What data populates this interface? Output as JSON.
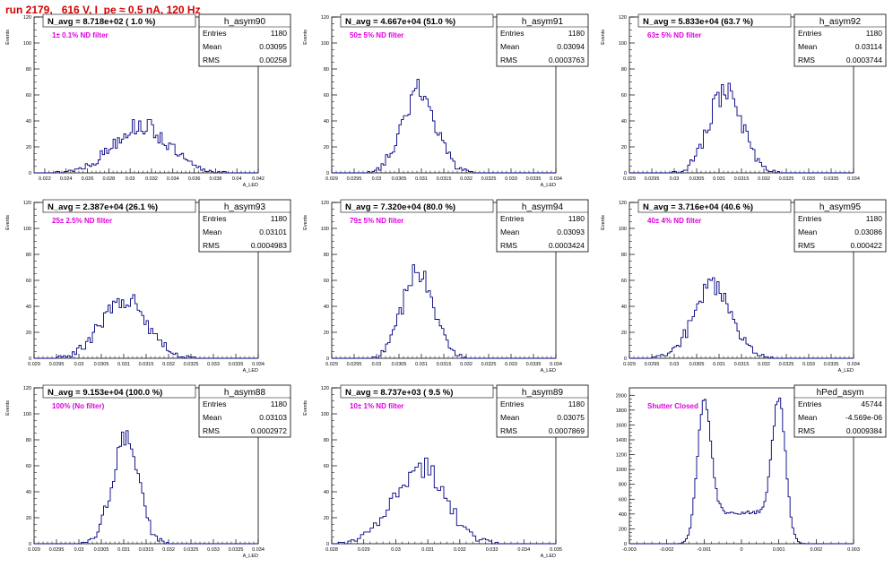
{
  "run_title": "run 2179,   616 V, I_pe ≈ 0.5 nA, 120 Hz",
  "colors": {
    "run_title": "#d40000",
    "histogram_line": "#000080",
    "note": "#e000e0",
    "frame": "#000000"
  },
  "stats_labels": {
    "entries": "Entries",
    "mean": "Mean",
    "rms": "RMS"
  },
  "chart_data": [
    {
      "type": "histogram",
      "name": "h_asym90",
      "title": "N_avg = 8.718e+02 ( 1.0 %)",
      "note": "1± 0.1% ND filter",
      "xlabel": "A_LED",
      "ylabel": "Events",
      "xlim": [
        0.021,
        0.042
      ],
      "ylim": [
        0,
        120
      ],
      "xticks": [
        "0.022",
        "0.024",
        "0.026",
        "0.028",
        "0.03",
        "0.032",
        "0.034",
        "0.036",
        "0.038",
        "0.04",
        "0.042"
      ],
      "yticks": [
        "0",
        "20",
        "40",
        "60",
        "80",
        "100",
        "120"
      ],
      "stats": {
        "entries": "1180",
        "mean": "0.03095",
        "rms": "0.00258"
      },
      "dist": {
        "mean": 0.03095,
        "sigma": 0.00258,
        "n": 1180,
        "binw": 0.0002
      }
    },
    {
      "type": "histogram",
      "name": "h_asym91",
      "title": "N_avg = 4.667e+04 (51.0 %)",
      "note": "50± 5% ND filter",
      "xlabel": "A_LED",
      "ylabel": "Events",
      "xlim": [
        0.029,
        0.034
      ],
      "ylim": [
        0,
        120
      ],
      "xticks": [
        "0.029",
        "0.0295",
        "0.03",
        "0.0305",
        "0.031",
        "0.0315",
        "0.032",
        "0.0325",
        "0.033",
        "0.0335",
        "0.034"
      ],
      "yticks": [
        "0",
        "20",
        "40",
        "60",
        "80",
        "100",
        "120"
      ],
      "stats": {
        "entries": "1180",
        "mean": "0.03094",
        "rms": "0.0003763"
      },
      "dist": {
        "mean": 0.03094,
        "sigma": 0.0003763,
        "n": 1180,
        "binw": 5e-05
      }
    },
    {
      "type": "histogram",
      "name": "h_asym92",
      "title": "N_avg = 5.833e+04 (63.7 %)",
      "note": "63± 5% ND filter",
      "xlabel": "",
      "ylabel": "Events",
      "xlim": [
        0.029,
        0.034
      ],
      "ylim": [
        0,
        120
      ],
      "xticks": [
        "0.029",
        "0.0295",
        "0.03",
        "0.0305",
        "0.031",
        "0.0315",
        "0.032",
        "0.0325",
        "0.033",
        "0.0335",
        "0.034"
      ],
      "yticks": [
        "0",
        "20",
        "40",
        "60",
        "80",
        "100",
        "120"
      ],
      "stats": {
        "entries": "1180",
        "mean": "0.03114",
        "rms": "0.0003744"
      },
      "dist": {
        "mean": 0.03114,
        "sigma": 0.0003744,
        "n": 1180,
        "binw": 5e-05
      }
    },
    {
      "type": "histogram",
      "name": "h_asym93",
      "title": "N_avg = 2.387e+04 (26.1 %)",
      "note": "25± 2.5% ND filter",
      "xlabel": "A_LED",
      "ylabel": "Events",
      "xlim": [
        0.029,
        0.034
      ],
      "ylim": [
        0,
        120
      ],
      "xticks": [
        "0.029",
        "0.0295",
        "0.03",
        "0.0305",
        "0.031",
        "0.0315",
        "0.032",
        "0.0325",
        "0.033",
        "0.0335",
        "0.034"
      ],
      "yticks": [
        "0",
        "20",
        "40",
        "60",
        "80",
        "100",
        "120"
      ],
      "stats": {
        "entries": "1180",
        "mean": "0.03101",
        "rms": "0.0004983"
      },
      "dist": {
        "mean": 0.03101,
        "sigma": 0.0004983,
        "n": 1180,
        "binw": 5e-05
      }
    },
    {
      "type": "histogram",
      "name": "h_asym94",
      "title": "N_avg = 7.320e+04 (80.0 %)",
      "note": "79± 5% ND filter",
      "xlabel": "A_LED",
      "ylabel": "Events",
      "xlim": [
        0.029,
        0.034
      ],
      "ylim": [
        0,
        120
      ],
      "xticks": [
        "0.029",
        "0.0295",
        "0.03",
        "0.0305",
        "0.031",
        "0.0315",
        "0.032",
        "0.0325",
        "0.033",
        "0.0335",
        "0.034"
      ],
      "yticks": [
        "0",
        "20",
        "40",
        "60",
        "80",
        "100",
        "120"
      ],
      "stats": {
        "entries": "1180",
        "mean": "0.03093",
        "rms": "0.0003424"
      },
      "dist": {
        "mean": 0.03093,
        "sigma": 0.0003424,
        "n": 1180,
        "binw": 5e-05
      }
    },
    {
      "type": "histogram",
      "name": "h_asym95",
      "title": "N_avg = 3.716e+04 (40.6 %)",
      "note": "40± 4% ND filter",
      "xlabel": "A_LED",
      "ylabel": "Events",
      "xlim": [
        0.029,
        0.034
      ],
      "ylim": [
        0,
        120
      ],
      "xticks": [
        "0.029",
        "0.0295",
        "0.03",
        "0.0305",
        "0.031",
        "0.0315",
        "0.032",
        "0.0325",
        "0.033",
        "0.0335",
        "0.034"
      ],
      "yticks": [
        "0",
        "20",
        "40",
        "60",
        "80",
        "100",
        "120"
      ],
      "stats": {
        "entries": "1180",
        "mean": "0.03086",
        "rms": "0.000422"
      },
      "dist": {
        "mean": 0.03086,
        "sigma": 0.000422,
        "n": 1180,
        "binw": 5e-05
      }
    },
    {
      "type": "histogram",
      "name": "h_asym88",
      "title": "N_avg = 9.153e+04 (100.0 %)",
      "note": "100% (No filter)",
      "xlabel": "A_LED",
      "ylabel": "Events",
      "xlim": [
        0.029,
        0.034
      ],
      "ylim": [
        0,
        120
      ],
      "xticks": [
        "0.029",
        "0.0295",
        "0.03",
        "0.0305",
        "0.031",
        "0.0315",
        "0.032",
        "0.0325",
        "0.033",
        "0.0335",
        "0.034"
      ],
      "yticks": [
        "0",
        "20",
        "40",
        "60",
        "80",
        "100",
        "120"
      ],
      "stats": {
        "entries": "1180",
        "mean": "0.03103",
        "rms": "0.0002972"
      },
      "dist": {
        "mean": 0.03103,
        "sigma": 0.0002972,
        "n": 1180,
        "binw": 5e-05
      }
    },
    {
      "type": "histogram",
      "name": "h_asym89",
      "title": "N_avg = 8.737e+03 ( 9.5 %)",
      "note": "10± 1% ND filter",
      "xlabel": "A_LED",
      "ylabel": "Events",
      "xlim": [
        0.028,
        0.035
      ],
      "ylim": [
        0,
        120
      ],
      "xticks": [
        "0.028",
        "0.029",
        "0.03",
        "0.031",
        "0.032",
        "0.033",
        "0.034",
        "0.035"
      ],
      "yticks": [
        "0",
        "20",
        "40",
        "60",
        "80",
        "100",
        "120"
      ],
      "stats": {
        "entries": "1180",
        "mean": "0.03075",
        "rms": "0.0007869"
      },
      "dist": {
        "mean": 0.03075,
        "sigma": 0.0007869,
        "n": 1180,
        "binw": 0.0001
      }
    },
    {
      "type": "histogram",
      "name": "hPed_asym",
      "title": "",
      "note": "Shutter Closed",
      "xlabel": "",
      "ylabel": "",
      "xlim": [
        -0.003,
        0.003
      ],
      "ylim": [
        0,
        2100
      ],
      "xticks": [
        "-0.003",
        "-0.002",
        "-0.001",
        "0",
        "0.001",
        "0.002",
        "0.003"
      ],
      "yticks": [
        "0",
        "200",
        "400",
        "600",
        "800",
        "1000",
        "1200",
        "1400",
        "1600",
        "1800",
        "2000"
      ],
      "stats": {
        "entries": "45744",
        "mean": "-4.569e-06",
        "rms": "0.0009384"
      },
      "dist": {
        "peaks": [
          -0.001,
          0.001
        ],
        "peak_height": 1950,
        "peak_sigma": 0.00018,
        "baseline": 420,
        "binw": 5e-05
      }
    }
  ]
}
